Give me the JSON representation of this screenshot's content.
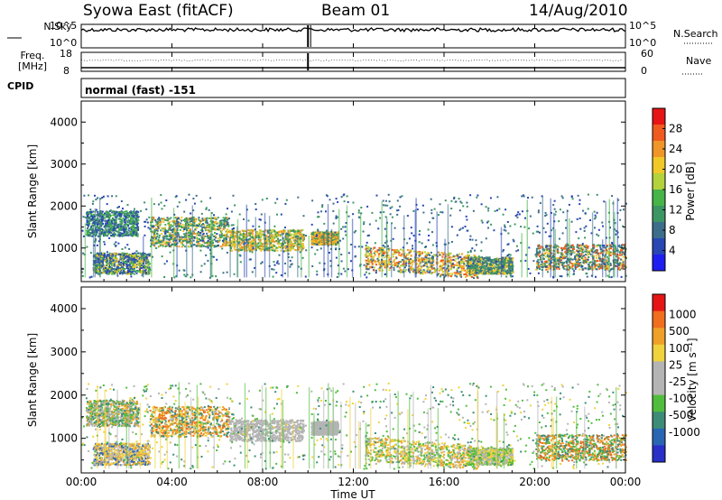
{
  "header": {
    "station": "Syowa East (fitACF)",
    "beam": "Beam 01",
    "date": "14/Aug/2010"
  },
  "params": {
    "nsky_label": "N.Sky",
    "nsearch_label": "N.Search",
    "freq_label": "Freq.",
    "freq_unit": "[MHz]",
    "nave_label": "Nave",
    "cpid_label": "CPID",
    "cpid_value": "normal (fast) -151",
    "left_top_tick": "10^5",
    "left_bottom_tick": "10^0",
    "right_top_tick": "10^5",
    "right_bottom_tick": "10^0",
    "freq_ticks": [
      "18",
      "8"
    ],
    "nave_ticks": [
      "60",
      "0"
    ],
    "freq_range_mhz": [
      8,
      18
    ],
    "nave_range": [
      0,
      60
    ],
    "data_gap_hour": 10.0
  },
  "chart_data": [
    {
      "type": "heatmap",
      "id": "power",
      "ylabel": "Slant Range [km]",
      "ylim": [
        200,
        4500
      ],
      "yticks": [
        1000,
        2000,
        3000,
        4000
      ],
      "colorbar": {
        "label": "Power [dB]",
        "range": [
          0,
          32
        ],
        "ticks": [
          4,
          8,
          12,
          16,
          20,
          24,
          28
        ],
        "colors": [
          "#1e1ef0",
          "#2846b4",
          "#3c6e8c",
          "#3c9664",
          "#46b446",
          "#b4d23c",
          "#f0c828",
          "#f09628",
          "#f05a1e",
          "#e61414"
        ]
      }
    },
    {
      "type": "heatmap",
      "id": "velocity",
      "ylabel": "Slant Range [km]",
      "ylim": [
        200,
        4500
      ],
      "yticks": [
        1000,
        2000,
        3000,
        4000
      ],
      "colorbar": {
        "label": "Velocity [m s⁻¹]",
        "ticks": [
          "1000",
          "500",
          "100",
          "25",
          "-25",
          "-100",
          "-500",
          "-1000"
        ],
        "colors": [
          "#2830c8",
          "#2866b4",
          "#3c8c78",
          "#50be3c",
          "#b4b4b4",
          "#b4b4b4",
          "#f0d23c",
          "#f0a028",
          "#f06e1e",
          "#e61414"
        ]
      }
    }
  ],
  "time_axis": {
    "xlabel": "Time UT",
    "xlim_hours": [
      0,
      24
    ],
    "ticks": [
      "00:00",
      "04:00",
      "08:00",
      "12:00",
      "16:00",
      "20:00",
      "00:00"
    ]
  }
}
